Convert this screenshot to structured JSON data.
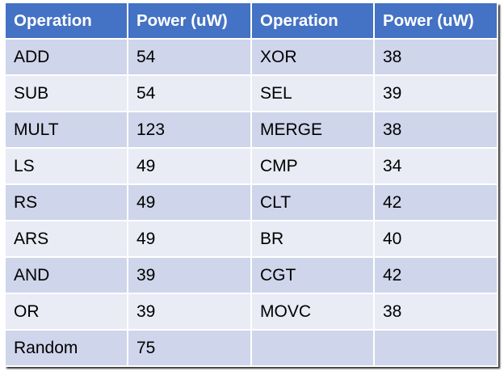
{
  "table": {
    "headers": [
      "Operation",
      "Power (uW)",
      "Operation",
      "Power (uW)"
    ],
    "rows": [
      [
        "ADD",
        "54",
        "XOR",
        "38"
      ],
      [
        "SUB",
        "54",
        "SEL",
        "39"
      ],
      [
        "MULT",
        "123",
        "MERGE",
        "38"
      ],
      [
        "LS",
        "49",
        "CMP",
        "34"
      ],
      [
        "RS",
        "49",
        "CLT",
        "42"
      ],
      [
        "ARS",
        "49",
        "BR",
        "40"
      ],
      [
        "AND",
        "39",
        "CGT",
        "42"
      ],
      [
        "OR",
        "39",
        "MOVC",
        "38"
      ],
      [
        "Random",
        "75",
        "",
        ""
      ]
    ]
  },
  "colors": {
    "header_bg": "#4472c4",
    "row_band_dark": "#cfd5ea",
    "row_band_light": "#e9ebf5"
  }
}
